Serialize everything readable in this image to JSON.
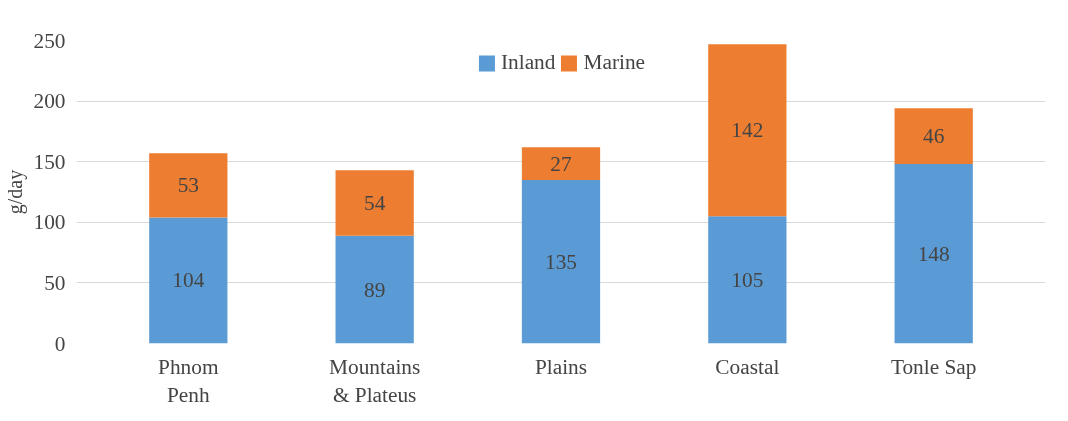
{
  "chart_data": {
    "type": "bar",
    "stacked": true,
    "ylabel": "g/day",
    "categories": [
      "Phnom Penh",
      "Mountains & Plateus",
      "Plains",
      "Coastal",
      "Tonle Sap"
    ],
    "series": [
      {
        "name": "Inland",
        "color": "#5b9bd5",
        "values": [
          104,
          89,
          135,
          105,
          148
        ]
      },
      {
        "name": "Marine",
        "color": "#ed7d31",
        "values": [
          53,
          54,
          27,
          142,
          46
        ]
      }
    ],
    "ylim": [
      0,
      250
    ],
    "yticks": [
      0,
      50,
      100,
      150,
      200,
      250
    ],
    "grid": "y",
    "legend": "top",
    "data_labels": true
  }
}
